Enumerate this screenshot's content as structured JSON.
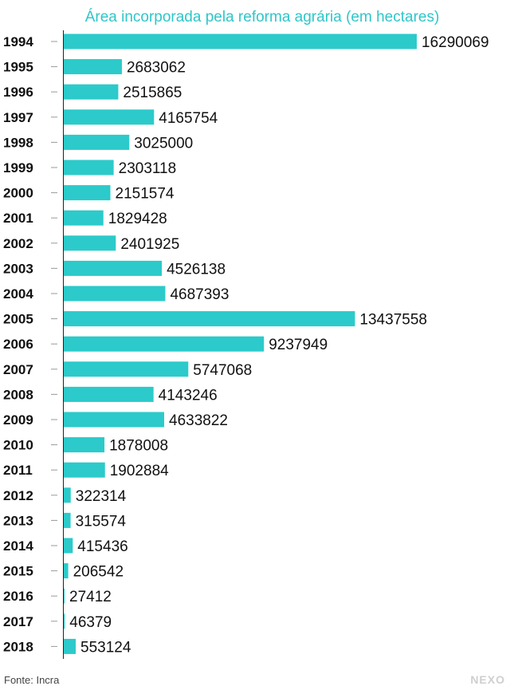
{
  "chart_data": {
    "type": "bar",
    "orientation": "horizontal",
    "title": "Área incorporada pela reforma agrária (em hectares)",
    "categories": [
      "1994",
      "1995",
      "1996",
      "1997",
      "1998",
      "1999",
      "2000",
      "2001",
      "2002",
      "2003",
      "2004",
      "2005",
      "2006",
      "2007",
      "2008",
      "2009",
      "2010",
      "2011",
      "2012",
      "2013",
      "2014",
      "2015",
      "2016",
      "2017",
      "2018"
    ],
    "values": [
      16290069,
      2683062,
      2515865,
      4165754,
      3025000,
      2303118,
      2151574,
      1829428,
      2401925,
      4526138,
      4687393,
      13437558,
      9237949,
      5747068,
      4143246,
      4633822,
      1878008,
      1902884,
      322314,
      315574,
      415436,
      206542,
      27412,
      46379,
      553124
    ],
    "labels": [
      "16290069",
      "2683062",
      "2515865",
      "4165754",
      "3025000",
      "2303118",
      "2151574",
      "1829428",
      "2401925",
      "4526138",
      "4687393",
      "13437558",
      "9237949",
      "5747068",
      "4143246",
      "4633822",
      "1878008",
      "1902884",
      "322314",
      "315574",
      "415436",
      "206542",
      "27412",
      "46379",
      "553124"
    ],
    "xlim": [
      0,
      16290069
    ],
    "bar_color": "#2ccaca",
    "grid": false,
    "legend": "none"
  },
  "source": "Fonte: Incra",
  "brand": "NEXO"
}
